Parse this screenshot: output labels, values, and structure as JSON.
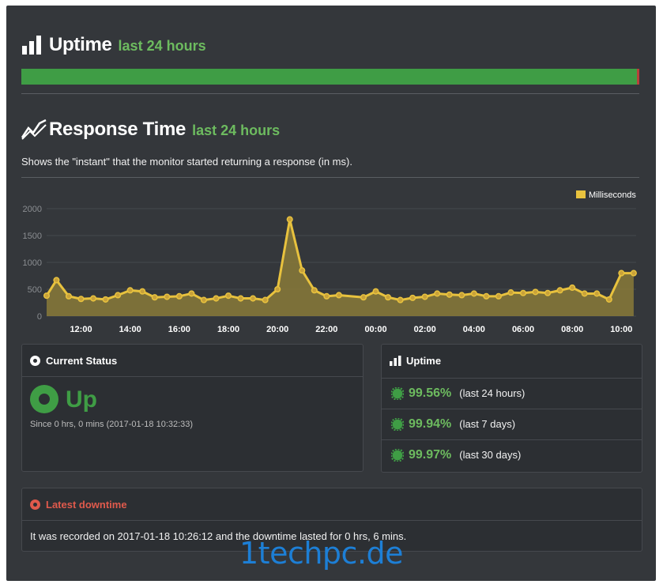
{
  "uptime_section": {
    "title": "Uptime",
    "subtitle": "last 24 hours",
    "colors": {
      "up": "#3f9d45",
      "down": "#b8413a"
    }
  },
  "response_section": {
    "title": "Response Time",
    "subtitle": "last 24 hours",
    "description": "Shows the \"instant\" that the monitor started returning a response (in ms)."
  },
  "chart_data": {
    "type": "area",
    "legend": "Milliseconds",
    "legend_position": "top-right",
    "series_color": "#e8c23e",
    "grid": true,
    "ylim": [
      0,
      2000
    ],
    "y_ticks": [
      "0",
      "500",
      "1000",
      "1500",
      "2000"
    ],
    "x_ticks": [
      "12:00",
      "14:00",
      "16:00",
      "18:00",
      "20:00",
      "22:00",
      "00:00",
      "02:00",
      "04:00",
      "06:00",
      "08:00",
      "10:00"
    ],
    "x_hours": [
      10.6,
      11.0,
      11.5,
      12.0,
      12.5,
      13.0,
      13.5,
      14.0,
      14.5,
      15.0,
      15.5,
      16.0,
      16.5,
      17.0,
      17.5,
      18.0,
      18.5,
      19.0,
      19.5,
      20.0,
      20.5,
      21.0,
      21.5,
      22.0,
      22.5,
      23.5,
      24.0,
      24.5,
      25.0,
      25.5,
      26.0,
      26.5,
      27.0,
      27.5,
      28.0,
      28.5,
      29.0,
      29.5,
      30.0,
      30.5,
      31.0,
      31.5,
      32.0,
      32.5,
      33.0,
      33.5,
      34.0,
      34.5
    ],
    "values": [
      380,
      670,
      370,
      320,
      330,
      310,
      390,
      480,
      460,
      350,
      360,
      370,
      420,
      300,
      330,
      380,
      330,
      330,
      300,
      500,
      1800,
      850,
      480,
      370,
      390,
      350,
      460,
      350,
      300,
      340,
      360,
      420,
      400,
      390,
      420,
      370,
      370,
      440,
      430,
      450,
      430,
      480,
      530,
      420,
      420,
      310,
      800,
      800
    ]
  },
  "current_status": {
    "header": "Current Status",
    "state": "Up",
    "since": "Since 0 hrs, 0 mins (2017-01-18 10:32:33)"
  },
  "uptime_card": {
    "header": "Uptime",
    "rows": [
      {
        "percent": "99.56%",
        "period": "(last 24 hours)"
      },
      {
        "percent": "99.94%",
        "period": "(last 7 days)"
      },
      {
        "percent": "99.97%",
        "period": "(last 30 days)"
      }
    ]
  },
  "latest_downtime": {
    "header": "Latest downtime",
    "text": "It was recorded on 2017-01-18 10:26:12 and the downtime lasted for 0 hrs, 6 mins."
  },
  "watermark": "1techpc.de"
}
